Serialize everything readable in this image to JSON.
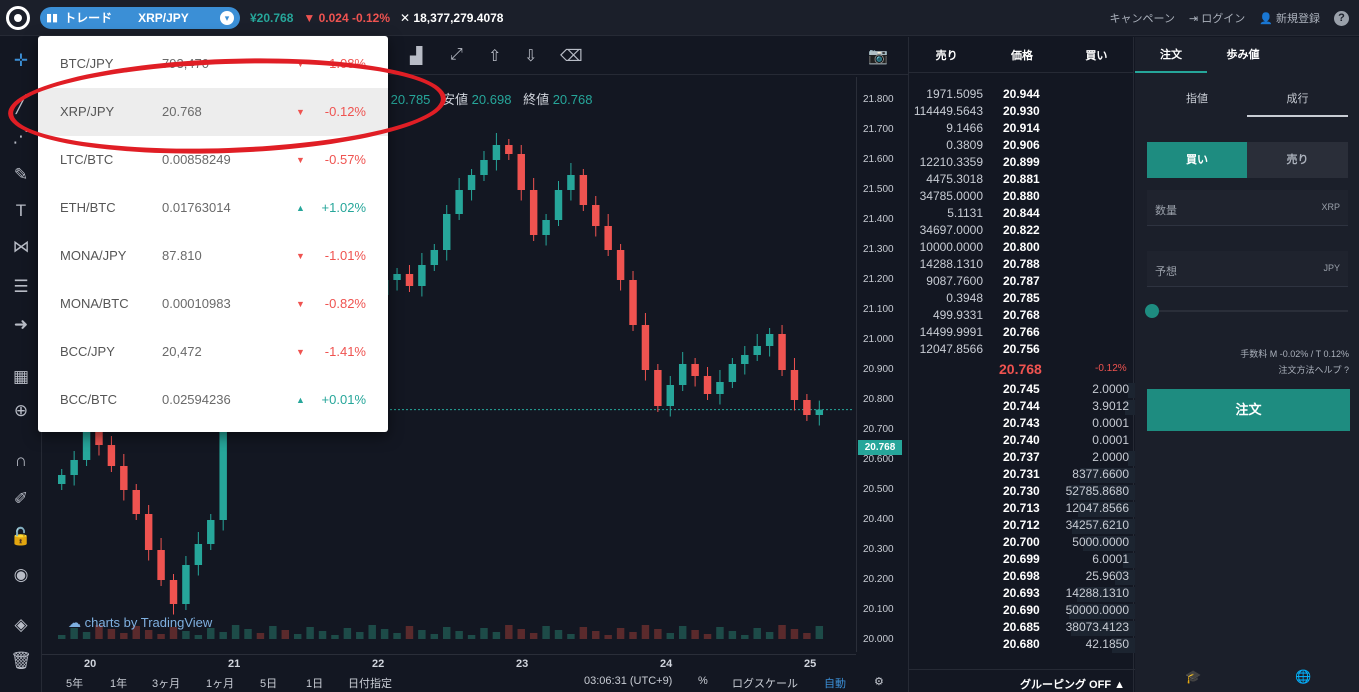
{
  "topbar": {
    "mode": "トレード",
    "pair": "XRP/JPY",
    "last_price": "¥20.768",
    "change": "0.024 -0.12%",
    "volume": "18,377,279.4078",
    "campaign": "キャンペーン",
    "login": "ログイン",
    "signup": "新規登録",
    "help": "?"
  },
  "dropdown": {
    "items": [
      {
        "symbol": "BTC/JPY",
        "price": "793,470",
        "change": "-1.08%",
        "dir": "down"
      },
      {
        "symbol": "XRP/JPY",
        "price": "20.768",
        "change": "-0.12%",
        "dir": "down"
      },
      {
        "symbol": "LTC/BTC",
        "price": "0.00858249",
        "change": "-0.57%",
        "dir": "down"
      },
      {
        "symbol": "ETH/BTC",
        "price": "0.01763014",
        "change": "+1.02%",
        "dir": "up"
      },
      {
        "symbol": "MONA/JPY",
        "price": "87.810",
        "change": "-1.01%",
        "dir": "down"
      },
      {
        "symbol": "MONA/BTC",
        "price": "0.00010983",
        "change": "-0.82%",
        "dir": "down"
      },
      {
        "symbol": "BCC/JPY",
        "price": "20,472",
        "change": "-1.41%",
        "dir": "down"
      },
      {
        "symbol": "BCC/BTC",
        "price": "0.02594236",
        "change": "+0.01%",
        "dir": "up"
      }
    ]
  },
  "chart": {
    "ohlc_high_label": "値",
    "ohlc_high": "20.785",
    "ohlc_low_label": "安値",
    "ohlc_low": "20.698",
    "ohlc_close_label": "終値",
    "ohlc_close": "20.768",
    "watermark": "charts by TradingView",
    "last_tag": "20.768",
    "ranges": [
      "5年",
      "1年",
      "3ヶ月",
      "1ヶ月",
      "5日",
      "1日",
      "日付指定"
    ],
    "clock": "03:06:31 (UTC+9)",
    "percent": "%",
    "log_scale": "ログスケール",
    "auto": "自動"
  },
  "chart_data": {
    "type": "candlestick",
    "y_ticks": [
      "21.800",
      "21.700",
      "21.600",
      "21.500",
      "21.400",
      "21.300",
      "21.200",
      "21.100",
      "21.000",
      "20.900",
      "20.800",
      "20.700",
      "20.600",
      "20.500",
      "20.400",
      "20.300",
      "20.200",
      "20.100",
      "20.000"
    ],
    "x_ticks": [
      "20",
      "21",
      "22",
      "23",
      "24",
      "25"
    ],
    "ylim": [
      20.0,
      21.8
    ],
    "last": 20.768,
    "close_path": [
      20.55,
      20.6,
      20.7,
      20.65,
      20.58,
      20.5,
      20.42,
      20.3,
      20.2,
      20.12,
      20.25,
      20.32,
      20.4,
      20.75,
      20.9,
      20.95,
      20.88,
      20.92,
      20.85,
      20.9,
      20.95,
      20.98,
      21.0,
      21.05,
      21.1,
      21.15,
      21.2,
      21.22,
      21.18,
      21.25,
      21.3,
      21.42,
      21.5,
      21.55,
      21.6,
      21.65,
      21.62,
      21.5,
      21.35,
      21.4,
      21.5,
      21.55,
      21.45,
      21.38,
      21.3,
      21.2,
      21.05,
      20.9,
      20.78,
      20.85,
      20.92,
      20.88,
      20.82,
      20.86,
      20.92,
      20.95,
      20.98,
      21.02,
      20.9,
      20.8,
      20.75,
      20.768
    ]
  },
  "book": {
    "headers": {
      "sell": "売り",
      "price": "価格",
      "buy": "買い"
    },
    "asks": [
      {
        "q": "1971.5095",
        "p": "20.944"
      },
      {
        "q": "114449.5643",
        "p": "20.930"
      },
      {
        "q": "9.1466",
        "p": "20.914"
      },
      {
        "q": "0.3809",
        "p": "20.906"
      },
      {
        "q": "12210.3359",
        "p": "20.899"
      },
      {
        "q": "4475.3018",
        "p": "20.881"
      },
      {
        "q": "34785.0000",
        "p": "20.880"
      },
      {
        "q": "5.1131",
        "p": "20.844"
      },
      {
        "q": "34697.0000",
        "p": "20.822"
      },
      {
        "q": "10000.0000",
        "p": "20.800"
      },
      {
        "q": "14288.1310",
        "p": "20.788"
      },
      {
        "q": "9087.7600",
        "p": "20.787"
      },
      {
        "q": "0.3948",
        "p": "20.785"
      },
      {
        "q": "499.9331",
        "p": "20.768"
      },
      {
        "q": "14499.9991",
        "p": "20.766"
      },
      {
        "q": "12047.8566",
        "p": "20.756"
      }
    ],
    "mid_price": "20.768",
    "mid_change": "-0.12%",
    "bids": [
      {
        "p": "20.745",
        "q": "2.0000"
      },
      {
        "p": "20.744",
        "q": "3.9012"
      },
      {
        "p": "20.743",
        "q": "0.0001"
      },
      {
        "p": "20.740",
        "q": "0.0001"
      },
      {
        "p": "20.737",
        "q": "2.0000"
      },
      {
        "p": "20.731",
        "q": "8377.6600"
      },
      {
        "p": "20.730",
        "q": "52785.8680"
      },
      {
        "p": "20.713",
        "q": "12047.8566"
      },
      {
        "p": "20.712",
        "q": "34257.6210"
      },
      {
        "p": "20.700",
        "q": "5000.0000"
      },
      {
        "p": "20.699",
        "q": "6.0001"
      },
      {
        "p": "20.698",
        "q": "25.9603"
      },
      {
        "p": "20.693",
        "q": "14288.1310"
      },
      {
        "p": "20.690",
        "q": "50000.0000"
      },
      {
        "p": "20.685",
        "q": "38073.4123"
      },
      {
        "p": "20.680",
        "q": "42.1850"
      }
    ],
    "grouping": "グルーピング OFF"
  },
  "order": {
    "tab_order": "注文",
    "tab_trades": "歩み値",
    "limit": "指値",
    "market": "成行",
    "buy": "買い",
    "sell": "売り",
    "qty_label": "数量",
    "qty_unit": "XRP",
    "est_label": "予想",
    "est_unit": "JPY",
    "fee": "手数料 M -0.02% / T 0.12%",
    "help": "注文方法ヘルプ",
    "submit": "注文"
  }
}
